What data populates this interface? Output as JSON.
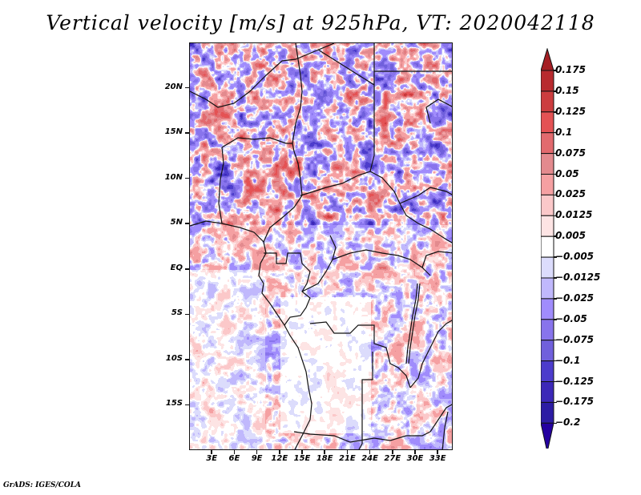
{
  "title": "Vertical velocity [m/s] at 925hPa, VT: 2020042118",
  "credit": "GrADS: IGES/COLA",
  "chart_data": {
    "type": "heatmap",
    "title": "Vertical velocity [m/s] at 925hPa, VT: 2020042118",
    "variable": "Vertical velocity",
    "units": "m/s",
    "level": "925hPa",
    "valid_time": "2020042118",
    "xlabel": "",
    "ylabel": "",
    "xlim": [
      0,
      35
    ],
    "ylim": [
      -20,
      25
    ],
    "x_ticks": [
      {
        "value": 3,
        "label": "3E"
      },
      {
        "value": 6,
        "label": "6E"
      },
      {
        "value": 9,
        "label": "9E"
      },
      {
        "value": 12,
        "label": "12E"
      },
      {
        "value": 15,
        "label": "15E"
      },
      {
        "value": 18,
        "label": "18E"
      },
      {
        "value": 21,
        "label": "21E"
      },
      {
        "value": 24,
        "label": "24E"
      },
      {
        "value": 27,
        "label": "27E"
      },
      {
        "value": 30,
        "label": "30E"
      },
      {
        "value": 33,
        "label": "33E"
      }
    ],
    "y_ticks": [
      {
        "value": 20,
        "label": "20N"
      },
      {
        "value": 15,
        "label": "15N"
      },
      {
        "value": 10,
        "label": "10N"
      },
      {
        "value": 5,
        "label": "5N"
      },
      {
        "value": 0,
        "label": "EQ"
      },
      {
        "value": -5,
        "label": "5S"
      },
      {
        "value": -10,
        "label": "10S"
      },
      {
        "value": -15,
        "label": "15S"
      }
    ],
    "colorbar": {
      "placement": "right",
      "extend": "both",
      "levels": [
        {
          "label": "0.175",
          "value": 0.175
        },
        {
          "label": "0.15",
          "value": 0.15
        },
        {
          "label": "0.125",
          "value": 0.125
        },
        {
          "label": "0.1",
          "value": 0.1
        },
        {
          "label": "0.075",
          "value": 0.075
        },
        {
          "label": "0.05",
          "value": 0.05
        },
        {
          "label": "0.025",
          "value": 0.025
        },
        {
          "label": "0.0125",
          "value": 0.0125
        },
        {
          "label": "0.005",
          "value": 0.005
        },
        {
          "label": "−0.005",
          "value": -0.005
        },
        {
          "label": "−0.0125",
          "value": -0.0125
        },
        {
          "label": "−0.025",
          "value": -0.025
        },
        {
          "label": "−0.05",
          "value": -0.05
        },
        {
          "label": "−0.075",
          "value": -0.075
        },
        {
          "label": "−0.1",
          "value": -0.1
        },
        {
          "label": "−0.125",
          "value": -0.125
        },
        {
          "label": "−0.175",
          "value": -0.175
        },
        {
          "label": "−0.2",
          "value": -0.2
        }
      ],
      "colors_top_to_bottom": [
        "#a51f24",
        "#b82a2e",
        "#cc3d3f",
        "#e45254",
        "#e26a6e",
        "#e38a8e",
        "#f5a0a2",
        "#fbc8c9",
        "#fde4e4",
        "#ffffff",
        "#dcdcfc",
        "#c0b8fc",
        "#a08cfc",
        "#8874ec",
        "#7060dc",
        "#4c3ccc",
        "#3c28b8",
        "#2c1ca4",
        "#2400a0"
      ]
    }
  }
}
